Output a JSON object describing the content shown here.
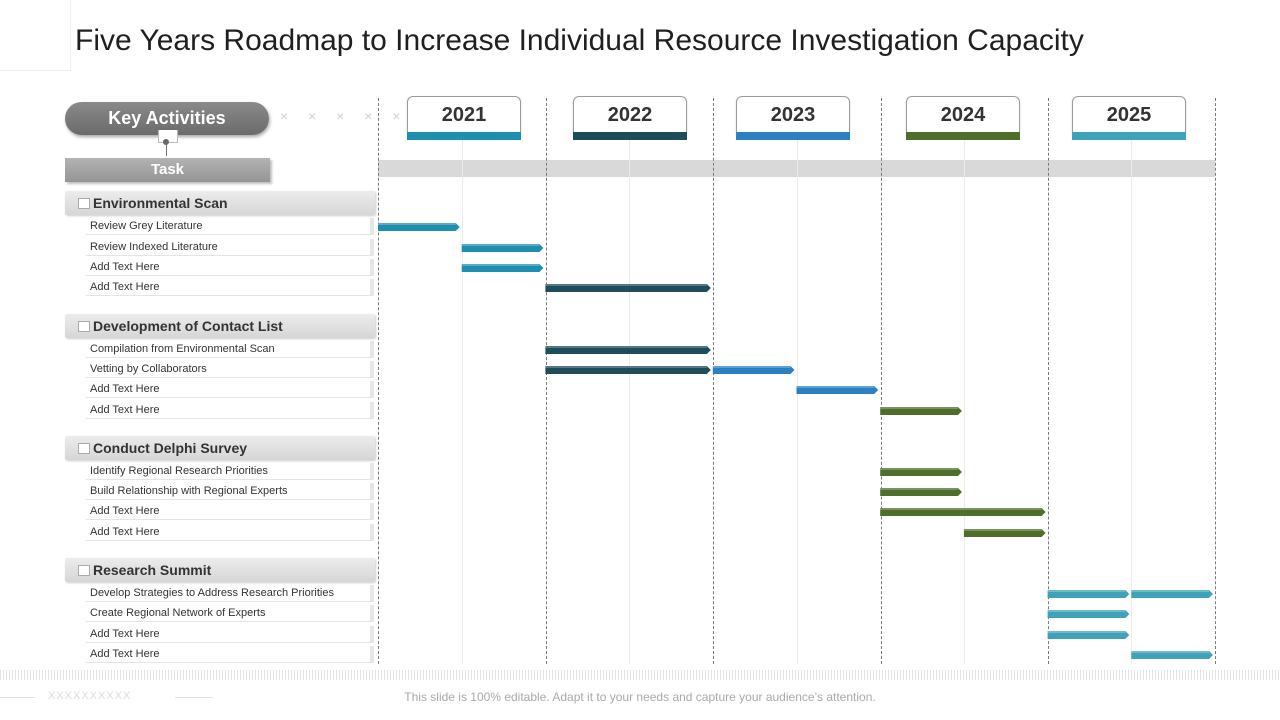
{
  "title": "Five Years Roadmap to Increase Individual Resource Investigation Capacity",
  "key_activities_label": "Key Activities",
  "task_label": "Task",
  "decor_x_marks": "× × × × ×",
  "years": [
    {
      "label": "2021",
      "color": "#1f8fb0"
    },
    {
      "label": "2022",
      "color": "#1f4d5a"
    },
    {
      "label": "2023",
      "color": "#2d7fc4"
    },
    {
      "label": "2024",
      "color": "#4e6e2a"
    },
    {
      "label": "2025",
      "color": "#3fa2b8"
    }
  ],
  "sections": [
    {
      "title": "Environmental Scan",
      "tasks": [
        {
          "label": "Review Grey Literature",
          "start": 2021.0,
          "end": 2021.5,
          "color": "#1f8fb0"
        },
        {
          "label": "Review Indexed Literature",
          "start": 2021.5,
          "end": 2022.0,
          "color": "#1f8fb0"
        },
        {
          "label": "Add Text Here",
          "start": 2021.5,
          "end": 2022.0,
          "color": "#1f8fb0"
        },
        {
          "label": "Add Text Here",
          "start": 2022.0,
          "end": 2023.0,
          "color": "#1f4d5a"
        }
      ]
    },
    {
      "title": "Development of Contact List",
      "tasks": [
        {
          "label": "Compilation  from Environmental Scan",
          "start": 2022.0,
          "end": 2023.0,
          "color": "#1f4d5a"
        },
        {
          "label": "Vetting by Collaborators",
          "start": 2022.0,
          "end": 2023.0,
          "color": "#1f4d5a",
          "extra": {
            "start": 2023.0,
            "end": 2023.5,
            "color": "#2d7fc4"
          }
        },
        {
          "label": "Add Text Here",
          "start": 2023.5,
          "end": 2024.0,
          "color": "#2d7fc4"
        },
        {
          "label": "Add Text Here",
          "start": 2024.0,
          "end": 2024.5,
          "color": "#4e6e2a"
        }
      ]
    },
    {
      "title": "Conduct Delphi Survey",
      "tasks": [
        {
          "label": "Identify Regional Research Priorities",
          "start": 2024.0,
          "end": 2024.5,
          "color": "#4e6e2a"
        },
        {
          "label": "Build Relationship  with Regional Experts",
          "start": 2024.0,
          "end": 2024.5,
          "color": "#4e6e2a"
        },
        {
          "label": "Add Text Here",
          "start": 2024.0,
          "end": 2025.0,
          "color": "#4e6e2a"
        },
        {
          "label": "Add Text Here",
          "start": 2024.5,
          "end": 2025.0,
          "color": "#4e6e2a"
        }
      ]
    },
    {
      "title": "Research Summit",
      "tasks": [
        {
          "label": "Develop Strategies to Address Research Priorities",
          "start": 2025.0,
          "end": 2025.5,
          "color": "#3fa2b8",
          "extra": {
            "start": 2025.5,
            "end": 2026.0,
            "color": "#3fa2b8"
          }
        },
        {
          "label": "Create Regional Network of Experts",
          "start": 2025.0,
          "end": 2025.5,
          "color": "#3fa2b8"
        },
        {
          "label": "Add Text Here",
          "start": 2025.0,
          "end": 2025.5,
          "color": "#3fa2b8"
        },
        {
          "label": "Add Text Here",
          "start": 2025.5,
          "end": 2026.0,
          "color": "#3fa2b8"
        }
      ]
    }
  ],
  "footer": {
    "note": "This slide is 100% editable. Adapt it to your needs and capture your audience’s attention.",
    "x_marks": "XXXXXXXXXX"
  }
}
